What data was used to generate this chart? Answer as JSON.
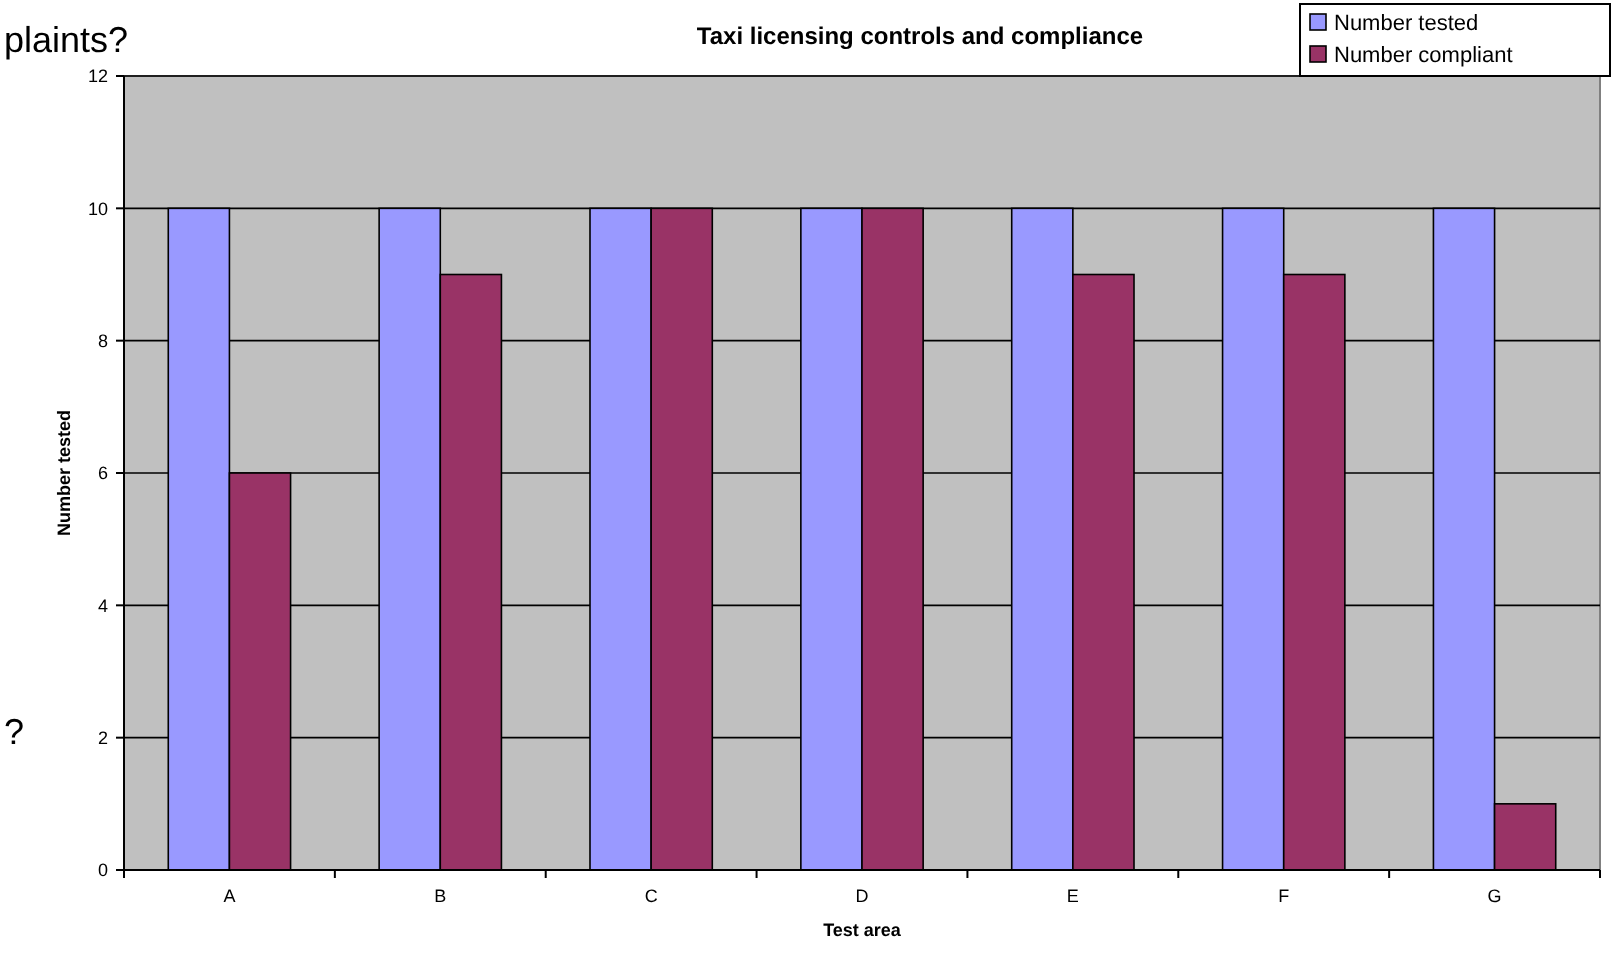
{
  "chart_data": {
    "type": "bar",
    "title": "Taxi licensing controls and compliance",
    "xlabel": "Test area",
    "ylabel": "Number tested",
    "categories": [
      "A",
      "B",
      "C",
      "D",
      "E",
      "F",
      "G"
    ],
    "series": [
      {
        "name": "Number tested",
        "color": "#9999ff",
        "values": [
          10,
          10,
          10,
          10,
          10,
          10,
          10
        ]
      },
      {
        "name": "Number compliant",
        "color": "#993366",
        "values": [
          6,
          9,
          10,
          10,
          9,
          9,
          1
        ]
      }
    ],
    "ylim": [
      0,
      12
    ],
    "yticks": [
      0,
      2,
      4,
      6,
      8,
      10,
      12
    ],
    "grid": "y",
    "legend": "top right",
    "annotations": [
      "plaints?",
      "?"
    ]
  }
}
